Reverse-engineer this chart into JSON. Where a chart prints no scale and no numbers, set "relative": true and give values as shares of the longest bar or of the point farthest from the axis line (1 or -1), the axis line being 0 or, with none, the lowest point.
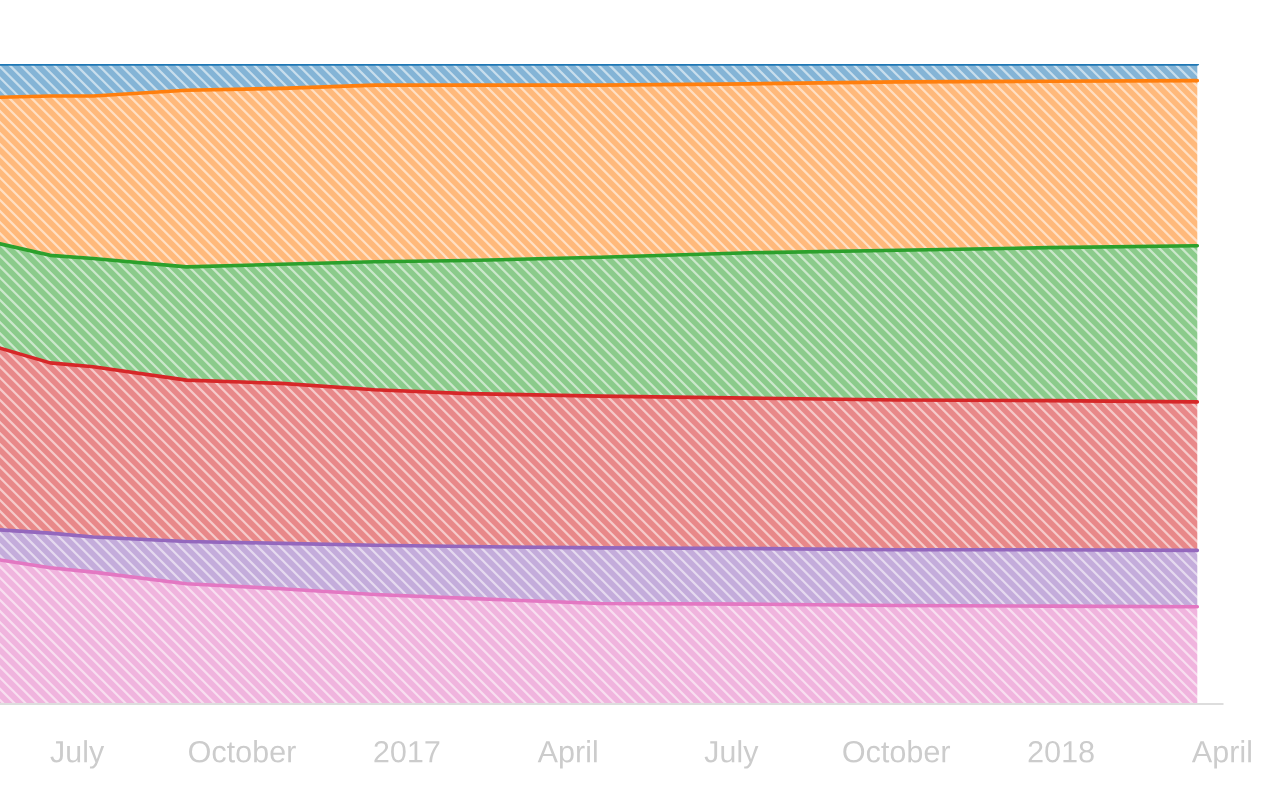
{
  "chart_data": {
    "type": "area",
    "stacked": true,
    "relative": true,
    "grid": false,
    "legend": false,
    "x": [
      "2016-05-19",
      "2016-06-16",
      "2016-07-10",
      "2016-08-31",
      "2016-10-23",
      "2016-12-14",
      "2017-02-04",
      "2017-04-19",
      "2017-07-11",
      "2017-10-02",
      "2017-12-25",
      "2018-03-18"
    ],
    "xlim": [
      "2016-05-19",
      "2018-04-01"
    ],
    "xticks": [
      {
        "value": "2016-07-01",
        "label": "July"
      },
      {
        "value": "2016-10-01",
        "label": "October"
      },
      {
        "value": "2017-01-01",
        "label": "2017"
      },
      {
        "value": "2017-04-01",
        "label": "April"
      },
      {
        "value": "2017-07-01",
        "label": "July"
      },
      {
        "value": "2017-10-01",
        "label": "October"
      },
      {
        "value": "2018-01-01",
        "label": "2018"
      },
      {
        "value": "2018-04-01",
        "label": "April"
      }
    ],
    "series": [
      {
        "color": "#e377c2",
        "values": [
          0.225,
          0.213,
          0.206,
          0.188,
          0.18,
          0.171,
          0.165,
          0.157,
          0.156,
          0.154,
          0.153,
          0.152
        ]
      },
      {
        "color": "#9467bd",
        "values": [
          0.047,
          0.054,
          0.055,
          0.066,
          0.071,
          0.077,
          0.081,
          0.087,
          0.087,
          0.087,
          0.088,
          0.088
        ]
      },
      {
        "color": "#d62728",
        "values": [
          0.284,
          0.266,
          0.266,
          0.252,
          0.25,
          0.243,
          0.239,
          0.237,
          0.235,
          0.234,
          0.233,
          0.232
        ]
      },
      {
        "color": "#2ca02c",
        "values": [
          0.163,
          0.168,
          0.169,
          0.177,
          0.186,
          0.2,
          0.208,
          0.217,
          0.227,
          0.234,
          0.239,
          0.244
        ]
      },
      {
        "color": "#ff7f0e",
        "values": [
          0.229,
          0.249,
          0.254,
          0.276,
          0.275,
          0.276,
          0.274,
          0.269,
          0.264,
          0.263,
          0.26,
          0.258
        ]
      },
      {
        "color": "#1f77b4",
        "values": [
          0.052,
          0.05,
          0.05,
          0.041,
          0.038,
          0.033,
          0.033,
          0.033,
          0.031,
          0.028,
          0.027,
          0.026
        ]
      }
    ]
  }
}
